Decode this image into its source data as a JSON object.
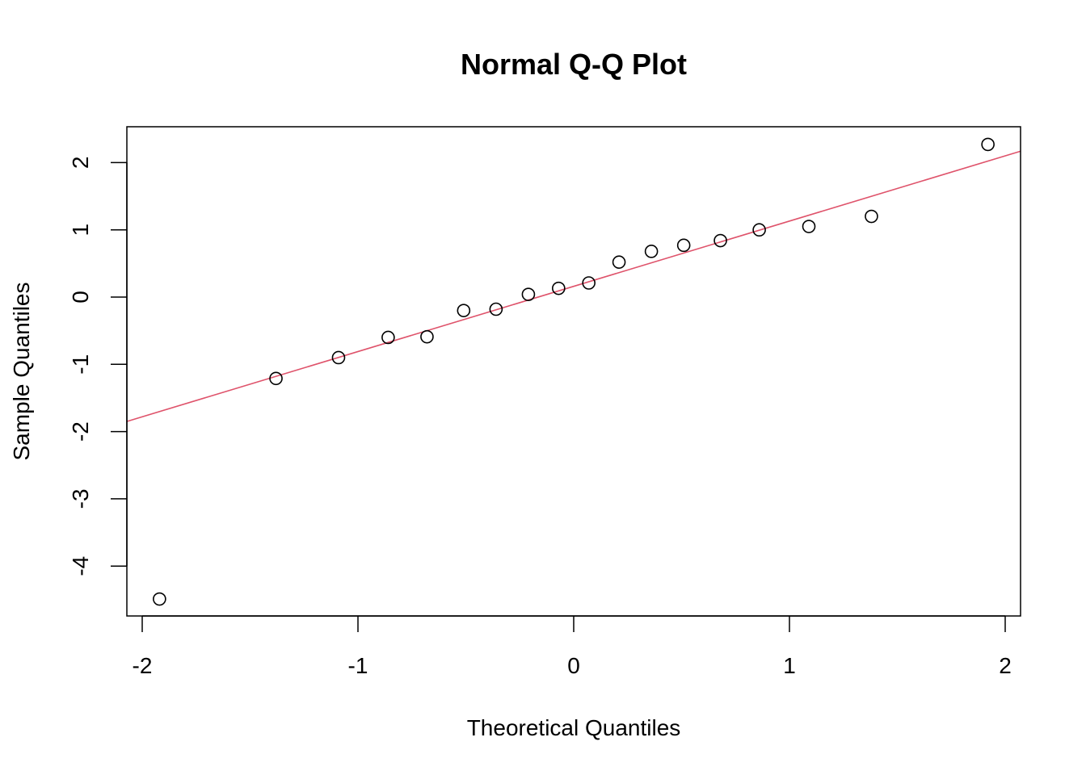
{
  "chart_data": {
    "type": "scatter",
    "title": "Normal Q-Q Plot",
    "xlabel": "Theoretical Quantiles",
    "ylabel": "Sample Quantiles",
    "xlim": [
      -2.07,
      2.07
    ],
    "ylim": [
      -4.73,
      2.55
    ],
    "xticks": [
      -2,
      -1,
      0,
      1,
      2
    ],
    "yticks": [
      -4,
      -3,
      -2,
      -1,
      0,
      1,
      2
    ],
    "grid": false,
    "legend": null,
    "series": [
      {
        "name": "sample",
        "marker": "open-circle",
        "color": "#000000",
        "points": [
          {
            "x": -1.92,
            "y": -4.49
          },
          {
            "x": -1.38,
            "y": -1.21
          },
          {
            "x": -1.09,
            "y": -0.9
          },
          {
            "x": -0.86,
            "y": -0.6
          },
          {
            "x": -0.68,
            "y": -0.59
          },
          {
            "x": -0.51,
            "y": -0.2
          },
          {
            "x": -0.36,
            "y": -0.18
          },
          {
            "x": -0.21,
            "y": 0.04
          },
          {
            "x": -0.07,
            "y": 0.13
          },
          {
            "x": 0.07,
            "y": 0.21
          },
          {
            "x": 0.21,
            "y": 0.52
          },
          {
            "x": 0.36,
            "y": 0.68
          },
          {
            "x": 0.51,
            "y": 0.77
          },
          {
            "x": 0.68,
            "y": 0.84
          },
          {
            "x": 0.86,
            "y": 1.0
          },
          {
            "x": 1.09,
            "y": 1.05
          },
          {
            "x": 1.38,
            "y": 1.2
          },
          {
            "x": 1.92,
            "y": 2.27
          }
        ]
      }
    ],
    "reference_line": {
      "name": "qqline",
      "color": "#DF536B",
      "intercept": 0.16,
      "slope": 0.97
    }
  }
}
